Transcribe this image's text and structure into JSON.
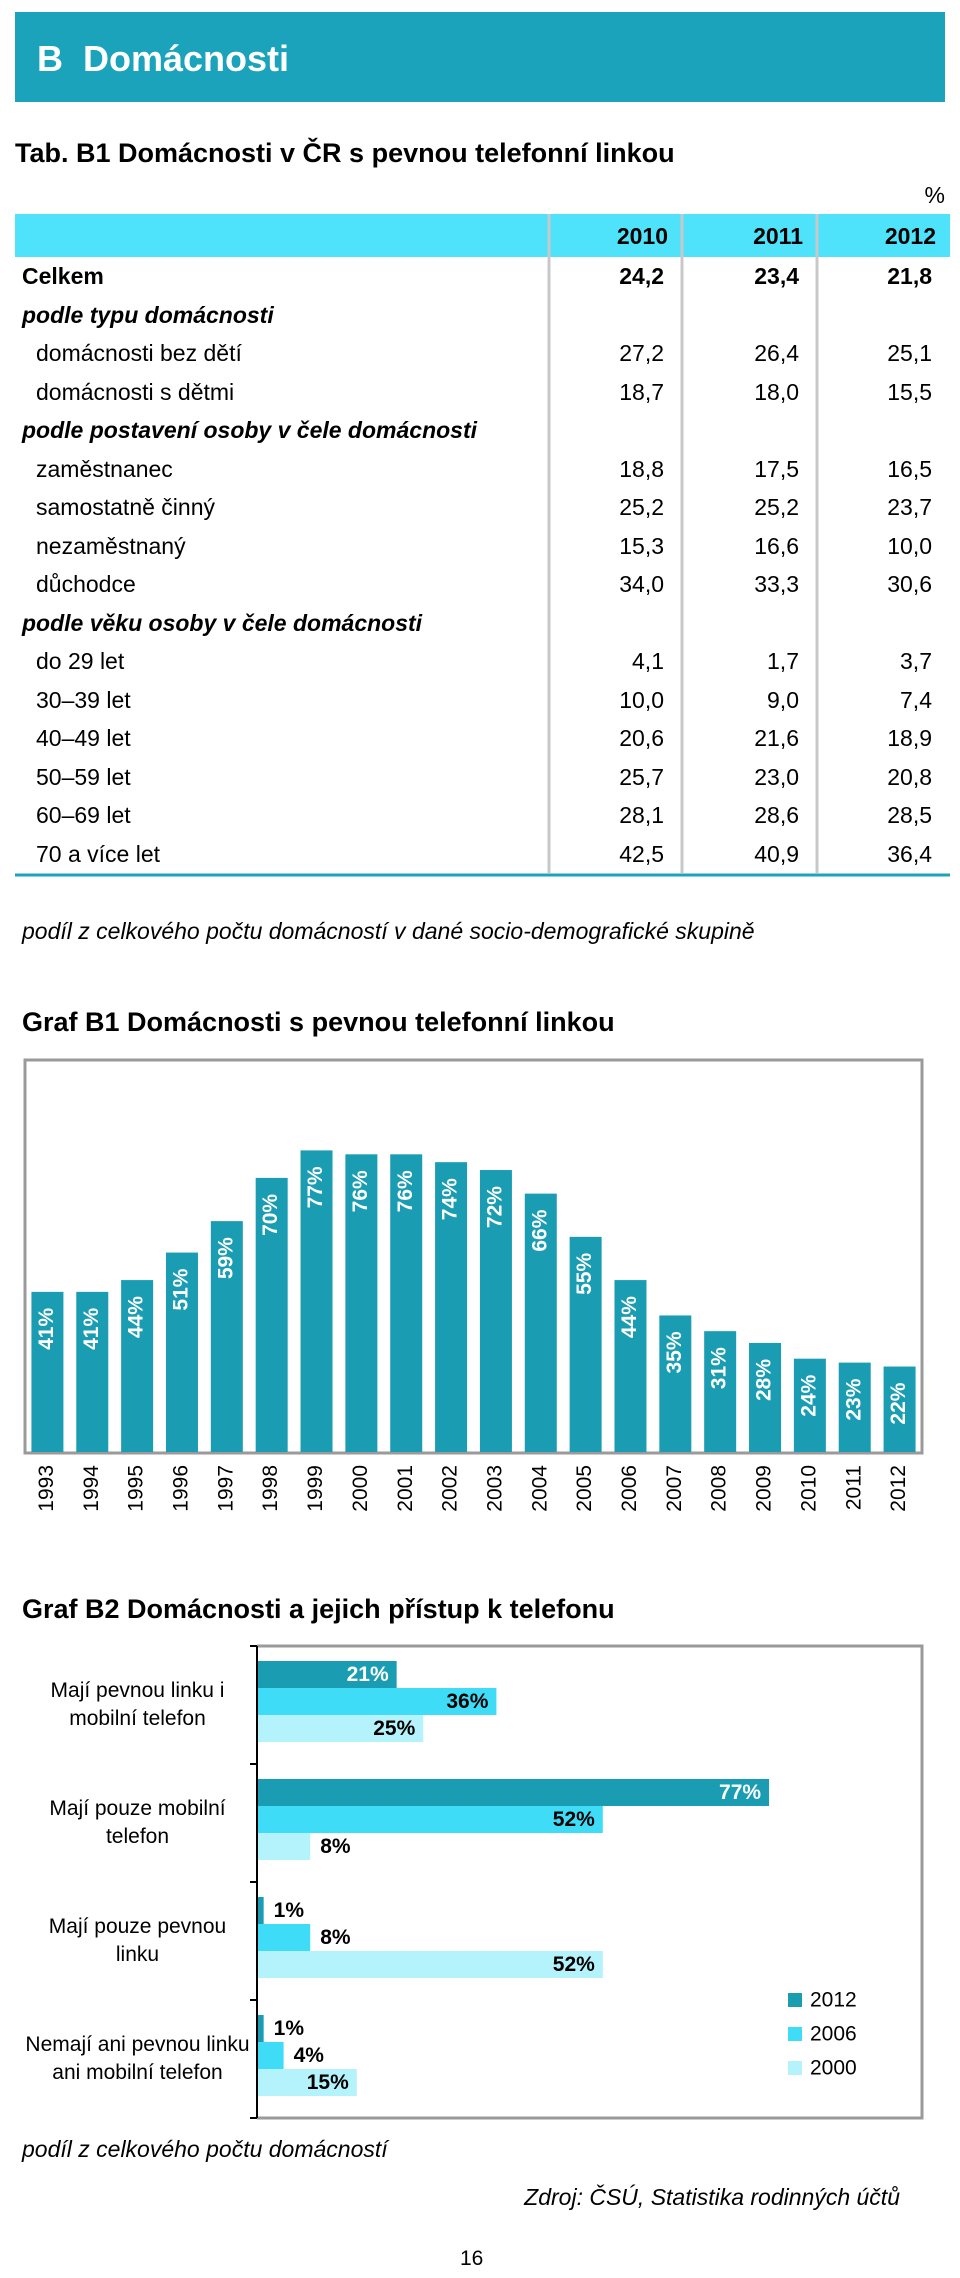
{
  "header": {
    "title": "B Domácnosti"
  },
  "table": {
    "title": "Tab. B1 Domácnosti v ČR s pevnou telefonní linkou",
    "unit": "%",
    "columns": [
      "2010",
      "2011",
      "2012"
    ],
    "rows": [
      [
        "Celkem",
        "24,2",
        "23,4",
        "21,8"
      ],
      [
        "podle typu domácnosti"
      ],
      [
        "domácnosti bez dětí",
        "27,2",
        "26,4",
        "25,1"
      ],
      [
        "domácnosti s dětmi",
        "18,7",
        "18,0",
        "15,5"
      ],
      [
        "podle postavení osoby v čele domácnosti"
      ],
      [
        "zaměstnanec",
        "18,8",
        "17,5",
        "16,5"
      ],
      [
        "samostatně činný",
        "25,2",
        "25,2",
        "23,7"
      ],
      [
        "nezaměstnaný",
        "15,3",
        "16,6",
        "10,0"
      ],
      [
        "důchodce",
        "34,0",
        "33,3",
        "30,6"
      ],
      [
        "podle věku osoby v čele domácnosti"
      ],
      [
        "do 29 let",
        "4,1",
        "1,7",
        "3,7"
      ],
      [
        "30–39 let",
        "10,0",
        "9,0",
        "7,4"
      ],
      [
        "40–49 let",
        "20,6",
        "21,6",
        "18,9"
      ],
      [
        "50–59 let",
        "25,7",
        "23,0",
        "20,8"
      ],
      [
        "60–69 let",
        "28,1",
        "28,6",
        "28,5"
      ],
      [
        "70 a více let",
        "42,5",
        "40,9",
        "36,4"
      ]
    ],
    "note": "podíl z celkového počtu domácností v dané socio-demografické skupině"
  },
  "chart_data": [
    {
      "type": "bar",
      "title": "Graf B1 Domácnosti s pevnou telefonní linkou",
      "categories": [
        "1993",
        "1994",
        "1995",
        "1996",
        "1997",
        "1998",
        "1999",
        "2000",
        "2001",
        "2002",
        "2003",
        "2004",
        "2005",
        "2006",
        "2007",
        "2008",
        "2009",
        "2010",
        "2011",
        "2012"
      ],
      "values": [
        41,
        41,
        44,
        51,
        59,
        70,
        77,
        76,
        76,
        74,
        72,
        66,
        55,
        44,
        35,
        31,
        28,
        24,
        23,
        22
      ],
      "value_labels": [
        "41%",
        "41%",
        "44%",
        "51%",
        "59%",
        "70%",
        "77%",
        "76%",
        "76%",
        "74%",
        "72%",
        "66%",
        "55%",
        "44%",
        "35%",
        "31%",
        "28%",
        "24%",
        "23%",
        "22%"
      ],
      "color": "#1a9db3",
      "ylim": [
        0,
        100
      ]
    },
    {
      "type": "hbar",
      "title": "Graf B2 Domácnosti a jejich přístup k telefonu",
      "categories": [
        "Mají pevnou linku i mobilní telefon",
        "Mají pouze mobilní telefon",
        "Mají pouze pevnou linku",
        "Nemají ani pevnou linku ani mobilní telefon"
      ],
      "series": [
        {
          "name": "2012",
          "color": "#1a9db3",
          "values": [
            21,
            77,
            1,
            1
          ],
          "value_labels": [
            "21%",
            "77%",
            "1%",
            "1%"
          ]
        },
        {
          "name": "2006",
          "color": "#3fdcf7",
          "values": [
            36,
            52,
            8,
            4
          ],
          "value_labels": [
            "36%",
            "52%",
            "8%",
            "4%"
          ]
        },
        {
          "name": "2000",
          "color": "#b4f3fb",
          "values": [
            25,
            8,
            52,
            15
          ],
          "value_labels": [
            "25%",
            "8%",
            "52%",
            "15%"
          ]
        }
      ],
      "xlim": [
        0,
        100
      ],
      "legend": "right"
    }
  ],
  "note": "podíl z celkového počtu domácností",
  "source": "Zdroj: ČSÚ, Statistika rodinných účtů",
  "page_number": "16"
}
